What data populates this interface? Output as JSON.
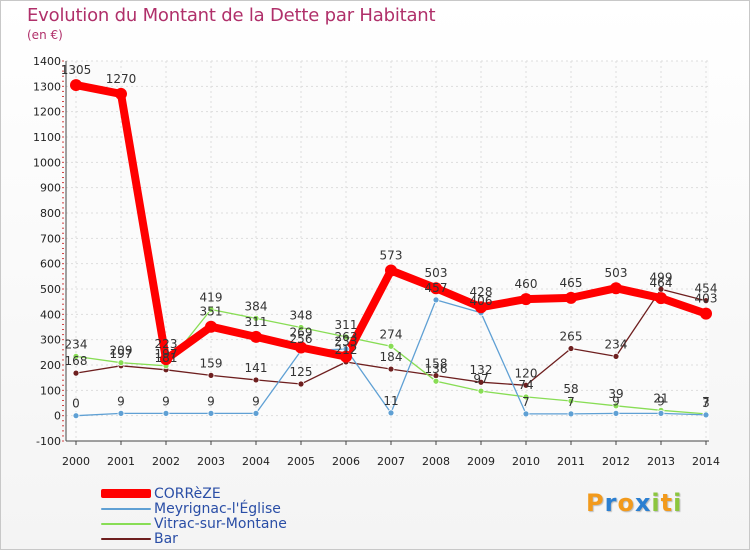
{
  "chart_data": {
    "type": "line",
    "title": "Evolution du Montant de la Dette par Habitant",
    "subtitle": "(en €)",
    "x": [
      "2000",
      "2001",
      "2002",
      "2003",
      "2004",
      "2005",
      "2006",
      "2007",
      "2008",
      "2009",
      "2010",
      "2011",
      "2012",
      "2013",
      "2014"
    ],
    "ylim": [
      -100,
      1400
    ],
    "yticks": [
      "-100",
      "0",
      "100",
      "200",
      "300",
      "400",
      "500",
      "600",
      "700",
      "800",
      "900",
      "1000",
      "1100",
      "1200",
      "1300",
      "1400"
    ],
    "grid": true,
    "legend_position": "bottom-left",
    "series": [
      {
        "name": "CORRèZE",
        "color": "#ff0000",
        "values": [
          1305,
          1270,
          223,
          351,
          311,
          269,
          233,
          573,
          503,
          428,
          460,
          465,
          503,
          464,
          403
        ],
        "labels": [
          "1305",
          "1270",
          "223",
          "351",
          "311",
          "269",
          "233",
          "573",
          "503",
          "428",
          "460",
          "465",
          "503",
          "464",
          "403"
        ]
      },
      {
        "name": "Meyrignac-l'Église",
        "color": "#5fa0d4",
        "values": [
          0,
          9,
          9,
          9,
          9,
          256,
          263,
          11,
          457,
          406,
          7,
          7,
          9,
          9,
          3
        ],
        "labels": [
          "0",
          "9",
          "9",
          "9",
          "9",
          "256",
          "263",
          "11",
          "457",
          "406",
          "7",
          "7",
          "9",
          "9",
          "3"
        ]
      },
      {
        "name": "Vitrac-sur-Montane",
        "color": "#88dd55",
        "values": [
          234,
          209,
          197,
          419,
          384,
          348,
          311,
          274,
          136,
          97,
          74,
          58,
          39,
          21,
          7
        ],
        "labels": [
          "234",
          "209",
          "197",
          "419",
          "384",
          "348",
          "311",
          "274",
          "136",
          "97",
          "74",
          "58",
          "39",
          "21",
          "7"
        ]
      },
      {
        "name": "Bar",
        "color": "#6e1f1f",
        "values": [
          168,
          197,
          181,
          159,
          141,
          125,
          212,
          184,
          158,
          132,
          120,
          265,
          234,
          499,
          454
        ],
        "labels": [
          "168",
          "197",
          "181",
          "159",
          "141",
          "125",
          "212",
          "184",
          "158",
          "132",
          "120",
          "265",
          "234",
          "499",
          "454"
        ]
      }
    ]
  },
  "legend": {
    "items": [
      {
        "label": "CORRèZE",
        "color": "#ff0000"
      },
      {
        "label": "Meyrignac-l'Église",
        "color": "#5fa0d4"
      },
      {
        "label": "Vitrac-sur-Montane",
        "color": "#88dd55"
      },
      {
        "label": "Bar",
        "color": "#6e1f1f"
      }
    ]
  },
  "logo": {
    "letters": [
      "P",
      "r",
      "o",
      "x",
      "i",
      "t",
      "i"
    ],
    "colors": [
      "#f29a1c",
      "#2b7fd1",
      "#f29a1c",
      "#2b7fd1",
      "#8cc63e",
      "#f29a1c",
      "#8cc63e"
    ]
  }
}
